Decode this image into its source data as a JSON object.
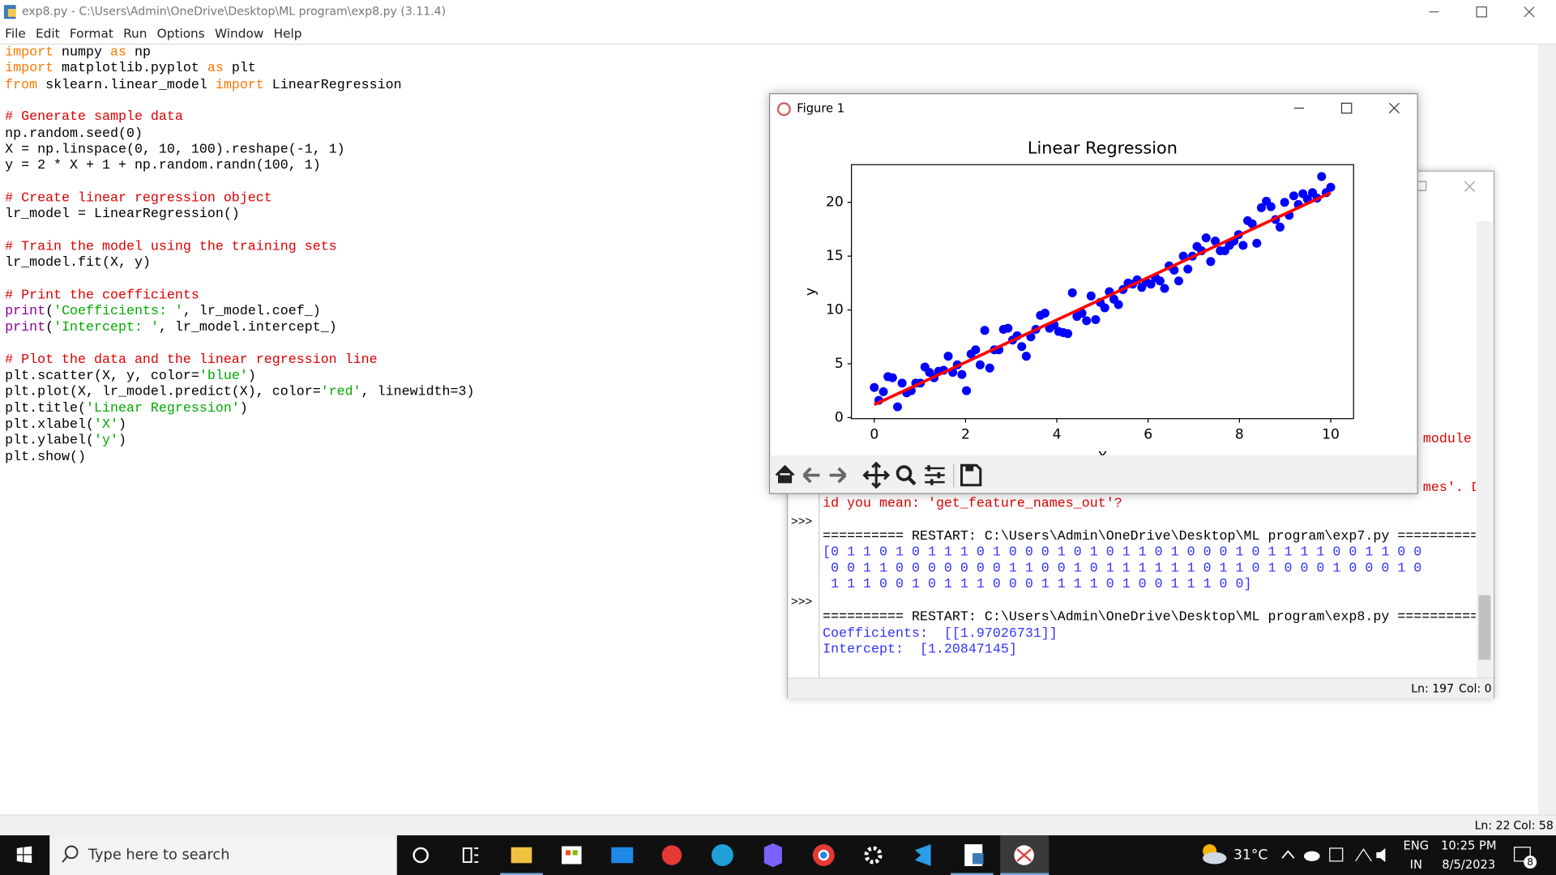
{
  "window": {
    "title": "exp8.py - C:\\Users\\Admin\\OneDrive\\Desktop\\ML program\\exp8.py (3.11.4)",
    "menu": [
      "File",
      "Edit",
      "Format",
      "Run",
      "Options",
      "Window",
      "Help"
    ],
    "status": {
      "line": "Ln: 22",
      "col": "Col: 58"
    }
  },
  "editor": {
    "lines": [
      [
        {
          "text": "import",
          "kind": "kw"
        },
        {
          "text": " numpy ",
          "kind": "plain"
        },
        {
          "text": "as",
          "kind": "kw"
        },
        {
          "text": " np",
          "kind": "plain"
        }
      ],
      [
        {
          "text": "import",
          "kind": "kw"
        },
        {
          "text": " matplotlib.pyplot ",
          "kind": "plain"
        },
        {
          "text": "as",
          "kind": "kw"
        },
        {
          "text": " plt",
          "kind": "plain"
        }
      ],
      [
        {
          "text": "from",
          "kind": "kw"
        },
        {
          "text": " sklearn.linear_model ",
          "kind": "plain"
        },
        {
          "text": "import",
          "kind": "kw"
        },
        {
          "text": " LinearRegression",
          "kind": "plain"
        }
      ],
      [],
      [
        {
          "text": "# Generate sample data",
          "kind": "cm"
        }
      ],
      [
        {
          "text": "np.random.seed(0)",
          "kind": "plain"
        }
      ],
      [
        {
          "text": "X = np.linspace(0, 10, 100).reshape(-1, 1)",
          "kind": "plain"
        }
      ],
      [
        {
          "text": "y = 2 * X + 1 + np.random.randn(100, 1)",
          "kind": "plain"
        }
      ],
      [],
      [
        {
          "text": "# Create linear regression object",
          "kind": "cm"
        }
      ],
      [
        {
          "text": "lr_model = LinearRegression()",
          "kind": "plain"
        }
      ],
      [],
      [
        {
          "text": "# Train the model using the training sets",
          "kind": "cm"
        }
      ],
      [
        {
          "text": "lr_model.fit(X, y)",
          "kind": "plain"
        }
      ],
      [],
      [
        {
          "text": "# Print the coefficients",
          "kind": "cm"
        }
      ],
      [
        {
          "text": "print",
          "kind": "bi"
        },
        {
          "text": "(",
          "kind": "plain"
        },
        {
          "text": "'Coefficients: '",
          "kind": "st"
        },
        {
          "text": ", lr_model.coef_)",
          "kind": "plain"
        }
      ],
      [
        {
          "text": "print",
          "kind": "bi"
        },
        {
          "text": "(",
          "kind": "plain"
        },
        {
          "text": "'Intercept: '",
          "kind": "st"
        },
        {
          "text": ", lr_model.intercept_)",
          "kind": "plain"
        }
      ],
      [],
      [
        {
          "text": "# Plot the data and the linear regression line",
          "kind": "cm"
        }
      ],
      [
        {
          "text": "plt.scatter(X, y, color=",
          "kind": "plain"
        },
        {
          "text": "'blue'",
          "kind": "st"
        },
        {
          "text": ")",
          "kind": "plain"
        }
      ],
      [
        {
          "text": "plt.plot(X, lr_model.predict(X), color=",
          "kind": "plain"
        },
        {
          "text": "'red'",
          "kind": "st"
        },
        {
          "text": ", linewidth=3)",
          "kind": "plain"
        }
      ],
      [
        {
          "text": "plt.title(",
          "kind": "plain"
        },
        {
          "text": "'Linear Regression'",
          "kind": "st"
        },
        {
          "text": ")",
          "kind": "plain"
        }
      ],
      [
        {
          "text": "plt.xlabel(",
          "kind": "plain"
        },
        {
          "text": "'X'",
          "kind": "st"
        },
        {
          "text": ")",
          "kind": "plain"
        }
      ],
      [
        {
          "text": "plt.ylabel(",
          "kind": "plain"
        },
        {
          "text": "'y'",
          "kind": "st"
        },
        {
          "text": ")",
          "kind": "plain"
        }
      ],
      [
        {
          "text": "plt.show()",
          "kind": "plain"
        }
      ]
    ]
  },
  "shell": {
    "fragments": [
      {
        "text": "module",
        "kind": "err"
      },
      {
        "text": "mes'. D",
        "kind": "err"
      }
    ],
    "lines": [
      {
        "text": "id you mean: 'get_feature_names_out'?",
        "kind": "err"
      },
      {
        "text": "========== RESTART: C:\\Users\\Admin\\OneDrive\\Desktop\\ML program\\exp7.py ==========",
        "kind": "plain"
      },
      {
        "text": "[0 1 1 0 1 0 1 1 1 0 1 0 0 0 1 0 1 0 1 1 0 1 0 0 0 1 0 1 1 1 1 0 0 1 1 0 0",
        "kind": "out"
      },
      {
        "text": " 0 0 1 1 0 0 0 0 0 0 0 1 1 0 0 1 0 1 1 1 1 1 1 0 1 1 0 1 0 0 0 1 0 0 0 1 0",
        "kind": "out"
      },
      {
        "text": " 1 1 1 0 0 1 0 1 1 1 0 0 0 1 1 1 1 0 1 0 0 1 1 1 0 0]",
        "kind": "out"
      },
      {
        "text": "========== RESTART: C:\\Users\\Admin\\OneDrive\\Desktop\\ML program\\exp8.py ==========",
        "kind": "plain"
      },
      {
        "text": "Coefficients:  [[1.97026731]]",
        "kind": "out"
      },
      {
        "text": "Intercept:  [1.20847145]",
        "kind": "out"
      }
    ],
    "prompts": [
      ">>>",
      ">>>"
    ],
    "status": {
      "line": "Ln: 197",
      "col": "Col: 0"
    }
  },
  "figure": {
    "title": "Figure 1"
  },
  "chart_data": {
    "type": "scatter",
    "title": "Linear Regression",
    "xlabel": "X",
    "ylabel": "y",
    "xlim": [
      -0.5,
      10.5
    ],
    "ylim": [
      -0.1,
      23.5
    ],
    "xticks": [
      0,
      2,
      4,
      6,
      8,
      10
    ],
    "yticks": [
      0,
      5,
      10,
      15,
      20
    ],
    "series": [
      {
        "type": "scatter",
        "color": "blue",
        "x": [
          0,
          0.1,
          0.2,
          0.3,
          0.4,
          0.51,
          0.61,
          0.71,
          0.81,
          0.91,
          1.01,
          1.11,
          1.21,
          1.31,
          1.41,
          1.52,
          1.62,
          1.72,
          1.82,
          1.92,
          2.02,
          2.12,
          2.22,
          2.32,
          2.42,
          2.53,
          2.63,
          2.73,
          2.83,
          2.93,
          3.03,
          3.13,
          3.23,
          3.33,
          3.43,
          3.54,
          3.64,
          3.74,
          3.84,
          3.94,
          4.04,
          4.14,
          4.24,
          4.34,
          4.44,
          4.55,
          4.65,
          4.75,
          4.85,
          4.95,
          5.05,
          5.15,
          5.25,
          5.35,
          5.45,
          5.56,
          5.66,
          5.76,
          5.86,
          5.96,
          6.06,
          6.16,
          6.26,
          6.36,
          6.46,
          6.57,
          6.67,
          6.77,
          6.87,
          6.97,
          7.07,
          7.17,
          7.27,
          7.37,
          7.47,
          7.58,
          7.68,
          7.78,
          7.88,
          7.98,
          8.08,
          8.18,
          8.28,
          8.38,
          8.48,
          8.59,
          8.69,
          8.79,
          8.89,
          8.99,
          9.09,
          9.19,
          9.29,
          9.39,
          9.49,
          9.6,
          9.7,
          9.8,
          9.9,
          10
        ],
        "values": [
          2.8,
          1.6,
          2.4,
          3.8,
          3.7,
          1.0,
          3.2,
          2.3,
          2.5,
          3.2,
          3.2,
          4.7,
          4.2,
          3.7,
          4.3,
          4.4,
          5.7,
          4.2,
          4.9,
          4.0,
          2.5,
          5.9,
          6.3,
          4.9,
          8.1,
          4.6,
          6.3,
          6.3,
          8.2,
          8.3,
          7.2,
          7.6,
          6.6,
          5.7,
          7.5,
          8.2,
          9.5,
          9.7,
          8.3,
          8.6,
          8.0,
          7.9,
          7.8,
          11.6,
          9.4,
          9.7,
          9.0,
          11.3,
          9.1,
          10.7,
          10.2,
          11.7,
          11.0,
          10.5,
          11.9,
          12.5,
          12.4,
          12.8,
          12.1,
          12.6,
          12.4,
          13.0,
          12.7,
          12.0,
          14.1,
          13.7,
          12.7,
          15.0,
          13.8,
          15.0,
          15.9,
          15.5,
          16.7,
          14.5,
          16.4,
          15.5,
          15.5,
          16.0,
          16.4,
          17.0,
          16.0,
          18.3,
          18.0,
          16.2,
          19.5,
          20.1,
          19.6,
          18.4,
          17.7,
          20.0,
          18.8,
          20.6,
          19.8,
          20.8,
          20.3,
          20.9,
          20.4,
          22.4,
          20.9,
          21.4
        ]
      },
      {
        "type": "line",
        "color": "red",
        "x": [
          0,
          10
        ],
        "values": [
          1.2,
          20.9
        ]
      }
    ]
  },
  "taskbar": {
    "search": "Type here to search",
    "temperature": "31°C",
    "language": "ENG",
    "region": "IN",
    "time": "10:25 PM",
    "date": "8/5/2023",
    "notifications": "8"
  }
}
